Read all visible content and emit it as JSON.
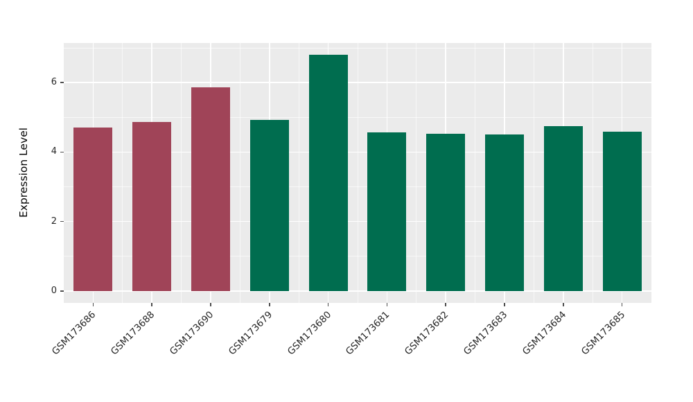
{
  "figure": {
    "background": "#ffffff"
  },
  "chart_data": {
    "type": "bar",
    "title": "",
    "xlabel": "",
    "ylabel": "Expression Level",
    "categories": [
      "GSM173686",
      "GSM173688",
      "GSM173690",
      "GSM173679",
      "GSM173680",
      "GSM173681",
      "GSM173682",
      "GSM173683",
      "GSM173684",
      "GSM173685"
    ],
    "values": [
      4.7,
      4.87,
      5.86,
      4.93,
      6.8,
      4.56,
      4.52,
      4.5,
      4.74,
      4.58
    ],
    "bar_colors": [
      "#a04458",
      "#a04458",
      "#a04458",
      "#006d4f",
      "#006d4f",
      "#006d4f",
      "#006d4f",
      "#006d4f",
      "#006d4f",
      "#006d4f"
    ],
    "group_colors": {
      "red_group": "#a04458",
      "green_group": "#006d4f"
    },
    "ylim": [
      -0.34,
      7.14
    ],
    "yticks": [
      0,
      2,
      4,
      6
    ],
    "ytick_labels": [
      "0",
      "2",
      "4",
      "6"
    ],
    "minor_yticks": [
      1,
      3,
      5,
      7
    ],
    "grid": true,
    "legend": "none",
    "panel_background": "#ebebeb",
    "grid_color": "#ffffff",
    "tick_label_color": "#262626",
    "bar_width_fraction": 0.66
  }
}
